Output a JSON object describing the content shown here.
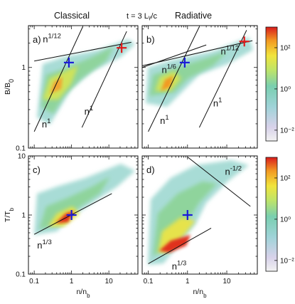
{
  "figure": {
    "header_left": "Classical",
    "header_mid": "t = 3 Lᵧ/c",
    "header_right": "Radiative"
  },
  "chart_data": [
    {
      "type": "heatmap",
      "panel": "a)",
      "xscale": "log",
      "yscale": "log",
      "xlim": [
        0.07,
        60
      ],
      "ylim": [
        0.1,
        3.3
      ],
      "ylabel": "B/B₀",
      "xlabel": "",
      "yticks": [
        0.1,
        1
      ],
      "yticklabels": [
        "0.1",
        "1"
      ],
      "marker": {
        "symbol": "+",
        "color": "#1a1ad8",
        "x": 0.85,
        "y": 1.15
      },
      "marker2": {
        "symbol": "+",
        "color": "#e01b1b",
        "x": 22,
        "y": 1.75
      },
      "guides": [
        {
          "label": "n¹ᐟ¹²",
          "label_text": "n",
          "exp": "1/12",
          "x": [
            0.1,
            40
          ],
          "y": [
            1.2,
            2.05
          ],
          "label_pos": [
            0.17,
            2.05
          ]
        },
        {
          "label_text": "n",
          "exp": "1",
          "x": [
            0.1,
            2.0
          ],
          "y": [
            0.16,
            3.2
          ],
          "label_pos": [
            0.16,
            0.18
          ]
        },
        {
          "label_text": "n",
          "exp": "1",
          "x": [
            1.9,
            30
          ],
          "y": [
            0.18,
            2.8
          ],
          "label_pos": [
            2.2,
            0.26
          ]
        }
      ]
    },
    {
      "type": "heatmap",
      "panel": "b)",
      "xscale": "log",
      "yscale": "log",
      "xlim": [
        0.07,
        60
      ],
      "ylim": [
        0.1,
        3.3
      ],
      "marker": {
        "symbol": "+",
        "color": "#1a1ad8",
        "x": 0.85,
        "y": 1.15
      },
      "marker2": {
        "symbol": "+",
        "color": "#e01b1b",
        "x": 28,
        "y": 2.1
      },
      "guides": [
        {
          "label_text": "n",
          "exp": "1/12",
          "x": [
            0.07,
            45
          ],
          "y": [
            1.05,
            2.15
          ],
          "label_pos": [
            7,
            1.45
          ]
        },
        {
          "label_text": "n",
          "exp": "1/6",
          "x": [
            0.07,
            3
          ],
          "y": [
            1.0,
            1.9
          ],
          "label_pos": [
            0.22,
            0.85
          ]
        },
        {
          "label_text": "n",
          "exp": "1",
          "x": [
            0.1,
            2.0
          ],
          "y": [
            0.16,
            3.2
          ],
          "label_pos": [
            0.2,
            0.2
          ]
        },
        {
          "label_text": "n",
          "exp": "1",
          "x": [
            2.0,
            32
          ],
          "y": [
            0.18,
            2.9
          ],
          "label_pos": [
            4.5,
            0.33
          ]
        }
      ]
    },
    {
      "type": "heatmap",
      "panel": "c)",
      "xscale": "log",
      "yscale": "log",
      "xlim": [
        0.07,
        60
      ],
      "ylim": [
        0.1,
        10
      ],
      "ylabel": "T/T_b",
      "xlabel": "n/n_b",
      "xticks": [
        0.1,
        1,
        10
      ],
      "xticklabels": [
        "0.1",
        "1",
        "10"
      ],
      "yticks": [
        0.1,
        1,
        10
      ],
      "yticklabels": [
        "0.1",
        "1",
        "10"
      ],
      "marker": {
        "symbol": "+",
        "color": "#1a1ad8",
        "x": 1.0,
        "y": 1.0
      },
      "guides": [
        {
          "label_text": "n",
          "exp": "1/3",
          "x": [
            0.1,
            12
          ],
          "y": [
            0.47,
            2.3
          ],
          "label_pos": [
            0.12,
            0.27
          ]
        }
      ]
    },
    {
      "type": "heatmap",
      "panel": "d)",
      "xscale": "log",
      "yscale": "log",
      "xlim": [
        0.07,
        60
      ],
      "ylim": [
        0.1,
        10
      ],
      "xlabel": "n/n_b",
      "xticks": [
        0.1,
        1,
        10
      ],
      "xticklabels": [
        "0.1",
        "1",
        "10"
      ],
      "marker": {
        "symbol": "+",
        "color": "#1a1ad8",
        "x": 1.0,
        "y": 1.0
      },
      "guides": [
        {
          "label_text": "n",
          "exp": "1/3",
          "x": [
            0.1,
            4
          ],
          "y": [
            0.15,
            0.6
          ],
          "label_pos": [
            0.4,
            0.12
          ]
        },
        {
          "label_text": "n",
          "exp": "-1/2",
          "x": [
            1.0,
            40
          ],
          "y": [
            9.6,
            1.4
          ],
          "label_pos": [
            9,
            4.8
          ]
        }
      ]
    }
  ],
  "colorbars": [
    {
      "scale": "log",
      "range": [
        0.003,
        1000
      ],
      "ticks": [
        0.01,
        1,
        100
      ],
      "ticklabels": [
        "10⁻²",
        "10⁰",
        "10²"
      ]
    },
    {
      "scale": "log",
      "range": [
        0.003,
        1000
      ],
      "ticks": [
        0.01,
        1,
        100
      ],
      "ticklabels": [
        "10⁻²",
        "10⁰",
        "10²"
      ]
    }
  ]
}
